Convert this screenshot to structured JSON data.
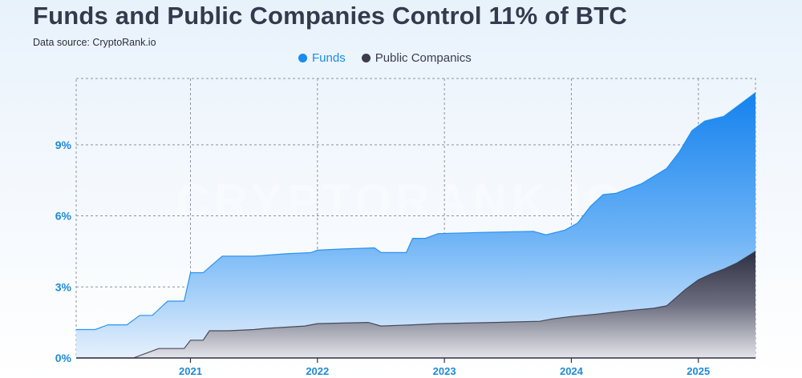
{
  "header": {
    "title": "Funds and Public Companies Control 11% of BTC",
    "subtitle": "Data source: CryptoRank.io",
    "watermark": "CRYPTORANK.IO"
  },
  "colors": {
    "title": "#343a4e",
    "funds": "#1a8cf0",
    "public_companies": "#3b3d4f",
    "tick_label": "#1e8ad6",
    "grid": "#8a93a3"
  },
  "chart_data": {
    "type": "area",
    "x_unit": "year",
    "xlim": [
      2020.1,
      2025.45
    ],
    "ylim": [
      0,
      11.8
    ],
    "x_ticks": [
      2021,
      2022,
      2023,
      2024,
      2025
    ],
    "x_tick_labels": [
      "2021",
      "2022",
      "2023",
      "2024",
      "2025"
    ],
    "y_ticks": [
      0,
      3,
      6,
      9
    ],
    "y_tick_labels": [
      "0%",
      "3%",
      "6%",
      "9%"
    ],
    "grid": "dashed",
    "legend_position": "top-center",
    "stacked": false,
    "series": [
      {
        "name": "Funds",
        "color": "#1a8cf0",
        "points": [
          [
            2020.1,
            1.2
          ],
          [
            2020.25,
            1.2
          ],
          [
            2020.35,
            1.4
          ],
          [
            2020.5,
            1.4
          ],
          [
            2020.6,
            1.8
          ],
          [
            2020.7,
            1.8
          ],
          [
            2020.82,
            2.4
          ],
          [
            2020.95,
            2.4
          ],
          [
            2021.0,
            3.6
          ],
          [
            2021.1,
            3.6
          ],
          [
            2021.25,
            4.3
          ],
          [
            2021.5,
            4.3
          ],
          [
            2021.75,
            4.4
          ],
          [
            2021.95,
            4.45
          ],
          [
            2022.0,
            4.55
          ],
          [
            2022.2,
            4.6
          ],
          [
            2022.45,
            4.65
          ],
          [
            2022.5,
            4.45
          ],
          [
            2022.7,
            4.45
          ],
          [
            2022.75,
            5.05
          ],
          [
            2022.85,
            5.05
          ],
          [
            2022.95,
            5.25
          ],
          [
            2023.3,
            5.3
          ],
          [
            2023.7,
            5.35
          ],
          [
            2023.8,
            5.2
          ],
          [
            2023.95,
            5.4
          ],
          [
            2024.05,
            5.7
          ],
          [
            2024.15,
            6.4
          ],
          [
            2024.25,
            6.9
          ],
          [
            2024.35,
            6.95
          ],
          [
            2024.55,
            7.35
          ],
          [
            2024.75,
            8.0
          ],
          [
            2024.85,
            8.7
          ],
          [
            2024.95,
            9.6
          ],
          [
            2025.05,
            10.0
          ],
          [
            2025.2,
            10.2
          ],
          [
            2025.3,
            10.6
          ],
          [
            2025.45,
            11.2
          ]
        ]
      },
      {
        "name": "Public Companics",
        "color": "#3b3d4f",
        "points": [
          [
            2020.1,
            0.0
          ],
          [
            2020.55,
            0.0
          ],
          [
            2020.75,
            0.4
          ],
          [
            2020.95,
            0.4
          ],
          [
            2021.0,
            0.75
          ],
          [
            2021.1,
            0.75
          ],
          [
            2021.15,
            1.15
          ],
          [
            2021.3,
            1.15
          ],
          [
            2021.5,
            1.2
          ],
          [
            2021.6,
            1.25
          ],
          [
            2021.9,
            1.35
          ],
          [
            2022.0,
            1.45
          ],
          [
            2022.4,
            1.5
          ],
          [
            2022.5,
            1.35
          ],
          [
            2022.75,
            1.4
          ],
          [
            2022.95,
            1.45
          ],
          [
            2023.4,
            1.5
          ],
          [
            2023.75,
            1.55
          ],
          [
            2023.85,
            1.65
          ],
          [
            2024.0,
            1.75
          ],
          [
            2024.2,
            1.85
          ],
          [
            2024.45,
            2.0
          ],
          [
            2024.65,
            2.1
          ],
          [
            2024.75,
            2.2
          ],
          [
            2024.9,
            2.9
          ],
          [
            2025.0,
            3.3
          ],
          [
            2025.1,
            3.55
          ],
          [
            2025.2,
            3.75
          ],
          [
            2025.3,
            4.0
          ],
          [
            2025.45,
            4.5
          ]
        ]
      }
    ]
  }
}
